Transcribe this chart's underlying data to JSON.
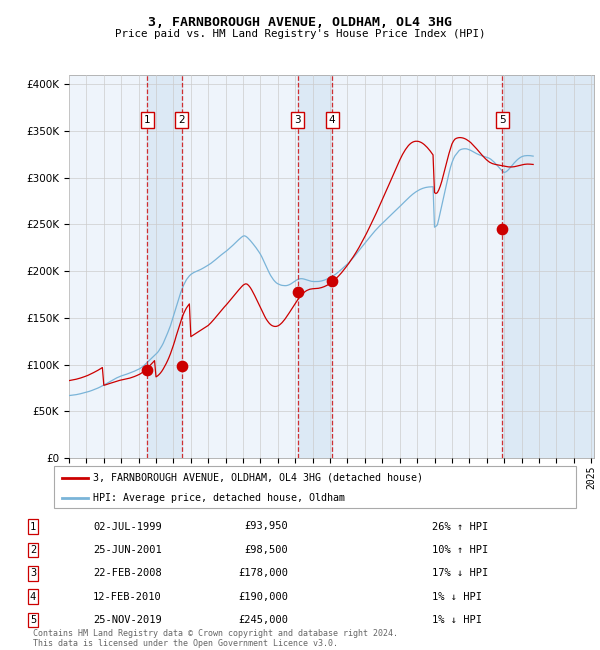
{
  "title": "3, FARNBOROUGH AVENUE, OLDHAM, OL4 3HG",
  "subtitle": "Price paid vs. HM Land Registry's House Price Index (HPI)",
  "ylim": [
    0,
    410000
  ],
  "yticks": [
    0,
    50000,
    100000,
    150000,
    200000,
    250000,
    300000,
    350000,
    400000
  ],
  "transactions": [
    {
      "num": 1,
      "date": "1999-07-02",
      "price": 93950,
      "label": "02-JUL-1999",
      "price_str": "£93,950",
      "hpi_str": "26% ↑ HPI"
    },
    {
      "num": 2,
      "date": "2001-06-25",
      "price": 98500,
      "label": "25-JUN-2001",
      "price_str": "£98,500",
      "hpi_str": "10% ↑ HPI"
    },
    {
      "num": 3,
      "date": "2008-02-22",
      "price": 178000,
      "label": "22-FEB-2008",
      "price_str": "£178,000",
      "hpi_str": "17% ↓ HPI"
    },
    {
      "num": 4,
      "date": "2010-02-12",
      "price": 190000,
      "label": "12-FEB-2010",
      "price_str": "£190,000",
      "hpi_str": "1% ↓ HPI"
    },
    {
      "num": 5,
      "date": "2019-11-25",
      "price": 245000,
      "label": "25-NOV-2019",
      "price_str": "£245,000",
      "hpi_str": "1% ↓ HPI"
    }
  ],
  "hpi_color": "#7ab4d8",
  "price_color": "#cc0000",
  "marker_color": "#cc0000",
  "vline_color": "#cc0000",
  "shade_color": "#dce9f5",
  "grid_color": "#cccccc",
  "background_color": "#ffffff",
  "legend_label_price": "3, FARNBOROUGH AVENUE, OLDHAM, OL4 3HG (detached house)",
  "legend_label_hpi": "HPI: Average price, detached house, Oldham",
  "footer": "Contains HM Land Registry data © Crown copyright and database right 2024.\nThis data is licensed under the Open Government Licence v3.0.",
  "hpi_monthly": [
    67000,
    67200,
    67400,
    67600,
    67800,
    68000,
    68300,
    68600,
    69000,
    69400,
    69800,
    70200,
    70600,
    71000,
    71500,
    72000,
    72600,
    73200,
    73800,
    74400,
    75100,
    75800,
    76600,
    77400,
    78200,
    79000,
    79900,
    80800,
    81700,
    82600,
    83500,
    84400,
    85200,
    86000,
    86700,
    87400,
    88000,
    88500,
    89000,
    89500,
    90000,
    90600,
    91200,
    91800,
    92400,
    93000,
    93700,
    94400,
    95200,
    96000,
    97000,
    98200,
    99500,
    101000,
    102500,
    104000,
    105500,
    107000,
    108500,
    110000,
    111500,
    113000,
    115000,
    117500,
    120000,
    123000,
    126500,
    130000,
    134000,
    138000,
    142000,
    147000,
    152000,
    157000,
    162000,
    167000,
    172000,
    177000,
    181000,
    185000,
    188000,
    191000,
    193000,
    195000,
    196500,
    197500,
    198500,
    199200,
    199800,
    200500,
    201200,
    202000,
    202800,
    203700,
    204600,
    205500,
    206500,
    207500,
    208500,
    209700,
    210900,
    212200,
    213500,
    214800,
    216100,
    217400,
    218600,
    219800,
    221000,
    222200,
    223500,
    224800,
    226200,
    227700,
    229200,
    230700,
    232200,
    233700,
    235100,
    236400,
    237500,
    237800,
    237200,
    236000,
    234500,
    232800,
    231000,
    229000,
    227000,
    225000,
    222800,
    220500,
    218000,
    215000,
    211800,
    208500,
    205200,
    201800,
    198500,
    195500,
    193000,
    190800,
    189000,
    187500,
    186500,
    185800,
    185200,
    184800,
    184600,
    184500,
    184600,
    185000,
    185600,
    186400,
    187400,
    188500,
    189600,
    190600,
    191300,
    191800,
    192000,
    191900,
    191600,
    191100,
    190500,
    190000,
    189500,
    189200,
    189000,
    188900,
    188900,
    188900,
    189000,
    189200,
    189500,
    189900,
    190400,
    191000,
    191700,
    192400,
    193100,
    193900,
    194800,
    195800,
    196900,
    198100,
    199400,
    200700,
    202100,
    203500,
    204900,
    206300,
    207700,
    209200,
    210800,
    212500,
    214300,
    216200,
    218100,
    220100,
    222100,
    224100,
    226100,
    228000,
    229900,
    231800,
    233700,
    235600,
    237500,
    239400,
    241300,
    243100,
    244800,
    246500,
    248100,
    249600,
    251100,
    252600,
    254100,
    255600,
    257100,
    258600,
    260100,
    261600,
    263100,
    264600,
    266100,
    267600,
    269100,
    270600,
    272100,
    273600,
    275100,
    276600,
    278100,
    279600,
    281000,
    282300,
    283500,
    284600,
    285600,
    286500,
    287300,
    288000,
    288600,
    289100,
    289500,
    289800,
    290000,
    290100,
    290200,
    290300,
    247000,
    248000,
    249500,
    256000,
    263000,
    270000,
    277000,
    284000,
    291000,
    298000,
    305000,
    311000,
    316000,
    320000,
    323000,
    325000,
    327000,
    329000,
    330000,
    330500,
    330800,
    330900,
    330800,
    330400,
    329800,
    329100,
    328300,
    327500,
    326600,
    325700,
    325000,
    324300,
    323700,
    323200,
    322700,
    322300,
    321800,
    321200,
    320500,
    319500,
    318200,
    316800,
    315200,
    313500,
    311700,
    310000,
    308300,
    306800,
    305500,
    306000,
    307000,
    308500,
    310200,
    312100,
    314000,
    315800,
    317500,
    319000,
    320300,
    321400,
    322300,
    322900,
    323300,
    323500,
    323600,
    323600,
    323500,
    323300,
    323000
  ],
  "price_monthly_relative": [
    83000,
    83300,
    83600,
    83900,
    84200,
    84500,
    84900,
    85300,
    85800,
    86300,
    86800,
    87400,
    88000,
    88600,
    89300,
    90000,
    90800,
    91600,
    92400,
    93200,
    94100,
    95000,
    96000,
    97000,
    78000,
    78400,
    78900,
    79400,
    79900,
    80400,
    80900,
    81400,
    81900,
    82400,
    82900,
    83300,
    83700,
    84000,
    84300,
    84600,
    84900,
    85300,
    85700,
    86200,
    86700,
    87300,
    87900,
    88600,
    89300,
    90100,
    91000,
    92100,
    93300,
    94700,
    96200,
    97800,
    99400,
    101000,
    102700,
    104400,
    87000,
    88000,
    89300,
    91000,
    93000,
    95500,
    98200,
    101200,
    104500,
    108000,
    112000,
    116300,
    121000,
    126000,
    131000,
    136000,
    141000,
    146000,
    150500,
    154500,
    157800,
    160700,
    163000,
    165000,
    130000,
    131000,
    132000,
    133000,
    134000,
    135000,
    136000,
    137000,
    138000,
    139000,
    140000,
    141000,
    142000,
    143500,
    145000,
    146700,
    148500,
    150300,
    152200,
    154100,
    156000,
    157900,
    159700,
    161500,
    163200,
    165000,
    166800,
    168600,
    170500,
    172400,
    174300,
    176200,
    178100,
    179900,
    181700,
    183400,
    185000,
    186000,
    186500,
    186000,
    184500,
    182500,
    180000,
    177000,
    174000,
    170800,
    167500,
    164200,
    161000,
    157800,
    154600,
    151600,
    148800,
    146500,
    144500,
    142900,
    141800,
    141200,
    140900,
    141000,
    141500,
    142400,
    143600,
    145100,
    146900,
    148900,
    151100,
    153400,
    155800,
    158200,
    160600,
    163000,
    165400,
    167800,
    170100,
    172200,
    174100,
    175800,
    177200,
    178400,
    179400,
    180100,
    180700,
    181000,
    181200,
    181300,
    181400,
    181500,
    181700,
    182000,
    182400,
    182900,
    183500,
    184200,
    185000,
    185900,
    186900,
    188000,
    189200,
    190500,
    191900,
    193400,
    195000,
    196700,
    198500,
    200400,
    202400,
    204400,
    206500,
    208600,
    210800,
    213000,
    215300,
    217700,
    220200,
    222800,
    225500,
    228300,
    231200,
    234100,
    237100,
    240100,
    243200,
    246300,
    249500,
    252700,
    256000,
    259300,
    262700,
    266100,
    269500,
    272900,
    276400,
    279900,
    283400,
    286900,
    290400,
    293900,
    297400,
    301000,
    304600,
    308200,
    311800,
    315300,
    318700,
    321900,
    324800,
    327500,
    330000,
    332200,
    334200,
    335800,
    337100,
    338000,
    338600,
    338900,
    338900,
    338700,
    338200,
    337500,
    336500,
    335300,
    333900,
    332300,
    330500,
    328600,
    326500,
    324300,
    284000,
    283000,
    284000,
    287000,
    291000,
    296000,
    302000,
    308000,
    314000,
    320000,
    326000,
    331000,
    336000,
    339000,
    341000,
    342000,
    342500,
    342800,
    342800,
    342600,
    342200,
    341600,
    340800,
    339800,
    338700,
    337400,
    335900,
    334400,
    332700,
    330900,
    329100,
    327300,
    325500,
    323700,
    322000,
    320400,
    318900,
    317600,
    316500,
    315700,
    315000,
    314500,
    314100,
    313800,
    313500,
    313200,
    312900,
    312600,
    312300,
    312000,
    311700,
    311500,
    311400,
    311400,
    311500,
    311700,
    312000,
    312400,
    312800,
    313200,
    313600,
    313900,
    314200,
    314400,
    314500,
    314500,
    314400,
    314300,
    314100
  ]
}
